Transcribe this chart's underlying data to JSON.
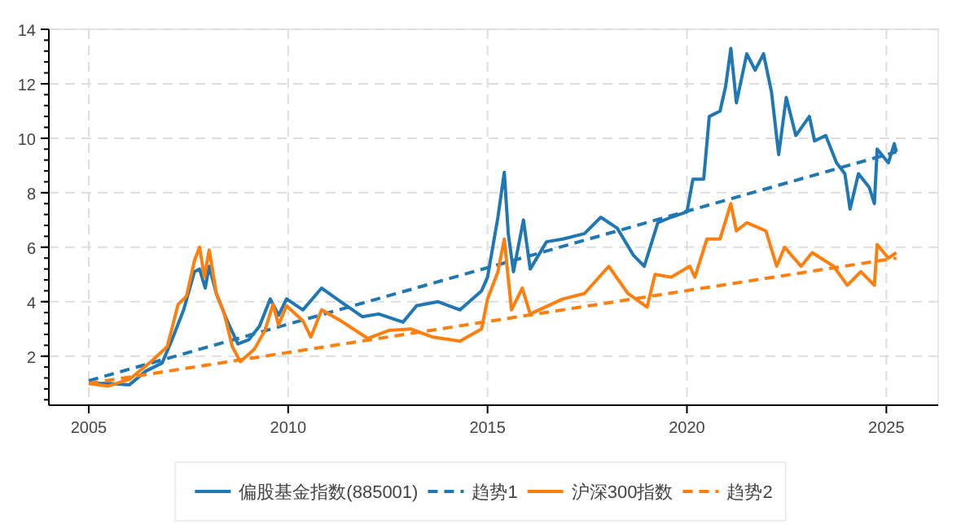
{
  "chart_data": {
    "type": "line",
    "xlim": [
      2004,
      2026.3
    ],
    "xticks": [
      2005,
      2010,
      2015,
      2020,
      2025
    ],
    "ylim": [
      0.2,
      14
    ],
    "yticks": [
      2,
      4,
      6,
      8,
      10,
      12,
      14
    ],
    "grid": true,
    "legend": "bottom",
    "series": [
      {
        "name": "偏股基金指数(885001)",
        "color": "#1f77b4",
        "line_style": "solid",
        "x": [
          2005.0,
          2005.5,
          2006.02,
          2006.43,
          2006.84,
          2007.1,
          2007.38,
          2007.65,
          2007.78,
          2007.92,
          2008.02,
          2008.2,
          2008.47,
          2008.74,
          2009.01,
          2009.28,
          2009.55,
          2009.76,
          2009.96,
          2010.37,
          2010.84,
          2011.32,
          2011.86,
          2012.27,
          2012.88,
          2013.22,
          2013.76,
          2014.31,
          2014.85,
          2015.0,
          2015.26,
          2015.42,
          2015.52,
          2015.65,
          2015.9,
          2016.07,
          2016.48,
          2016.89,
          2017.43,
          2017.84,
          2018.25,
          2018.66,
          2018.93,
          2019.27,
          2019.6,
          2020.0,
          2020.15,
          2020.42,
          2020.56,
          2020.83,
          2020.97,
          2021.1,
          2021.24,
          2021.5,
          2021.71,
          2021.92,
          2022.12,
          2022.3,
          2022.49,
          2022.73,
          2023.07,
          2023.2,
          2023.48,
          2023.75,
          2023.96,
          2024.09,
          2024.3,
          2024.57,
          2024.7,
          2024.77,
          2025.05,
          2025.2,
          2025.25
        ],
        "values": [
          1.0,
          1.0,
          0.95,
          1.45,
          1.75,
          2.65,
          3.7,
          5.1,
          5.2,
          4.5,
          5.3,
          4.3,
          3.3,
          2.45,
          2.6,
          3.1,
          4.1,
          3.5,
          4.1,
          3.7,
          4.5,
          4.0,
          3.45,
          3.55,
          3.25,
          3.85,
          4.0,
          3.7,
          4.4,
          4.9,
          7.1,
          8.75,
          6.5,
          5.1,
          7.0,
          5.2,
          6.2,
          6.3,
          6.5,
          7.1,
          6.7,
          5.7,
          5.3,
          6.9,
          7.1,
          7.3,
          8.5,
          8.5,
          10.8,
          11.0,
          11.9,
          13.3,
          11.3,
          13.1,
          12.5,
          13.1,
          11.7,
          9.4,
          11.5,
          10.1,
          10.8,
          9.9,
          10.1,
          9.1,
          8.7,
          7.4,
          8.7,
          8.2,
          7.6,
          9.6,
          9.1,
          9.8,
          9.5
        ]
      },
      {
        "name": "趋势1",
        "color": "#1f77b4",
        "line_style": "dashed",
        "x": [
          2005.0,
          2025.25
        ],
        "values": [
          1.1,
          9.5
        ]
      },
      {
        "name": "沪深300指数",
        "color": "#ff7f0e",
        "line_style": "solid",
        "x": [
          2005.0,
          2005.48,
          2006.02,
          2006.56,
          2006.97,
          2007.24,
          2007.45,
          2007.65,
          2007.78,
          2007.9,
          2008.02,
          2008.2,
          2008.4,
          2008.6,
          2008.8,
          2009.15,
          2009.42,
          2009.62,
          2009.76,
          2009.96,
          2010.37,
          2010.57,
          2010.84,
          2011.32,
          2012.0,
          2012.54,
          2013.08,
          2013.63,
          2014.31,
          2014.85,
          2015.0,
          2015.26,
          2015.42,
          2015.6,
          2015.87,
          2016.07,
          2016.89,
          2017.43,
          2018.04,
          2018.52,
          2019.0,
          2019.2,
          2019.6,
          2020.07,
          2020.2,
          2020.5,
          2020.83,
          2021.1,
          2021.24,
          2021.5,
          2021.98,
          2022.25,
          2022.45,
          2022.86,
          2023.14,
          2023.68,
          2024.02,
          2024.36,
          2024.7,
          2024.77,
          2025.05,
          2025.25
        ],
        "values": [
          1.0,
          0.9,
          1.15,
          1.8,
          2.35,
          3.9,
          4.2,
          5.5,
          6.0,
          4.9,
          5.9,
          4.3,
          3.55,
          2.35,
          1.8,
          2.25,
          2.95,
          3.9,
          3.15,
          3.85,
          3.3,
          2.7,
          3.7,
          3.3,
          2.65,
          2.95,
          3.0,
          2.7,
          2.55,
          3.0,
          4.1,
          5.1,
          6.3,
          3.7,
          4.5,
          3.55,
          4.1,
          4.3,
          5.3,
          4.3,
          3.8,
          5.0,
          4.9,
          5.3,
          4.9,
          6.3,
          6.3,
          7.6,
          6.6,
          6.9,
          6.6,
          5.3,
          6.0,
          5.3,
          5.8,
          5.3,
          4.6,
          5.1,
          4.6,
          6.1,
          5.6,
          5.8
        ]
      },
      {
        "name": "趋势2",
        "color": "#ff7f0e",
        "line_style": "dashed",
        "x": [
          2005.0,
          2025.25
        ],
        "values": [
          1.0,
          5.6
        ]
      }
    ]
  }
}
